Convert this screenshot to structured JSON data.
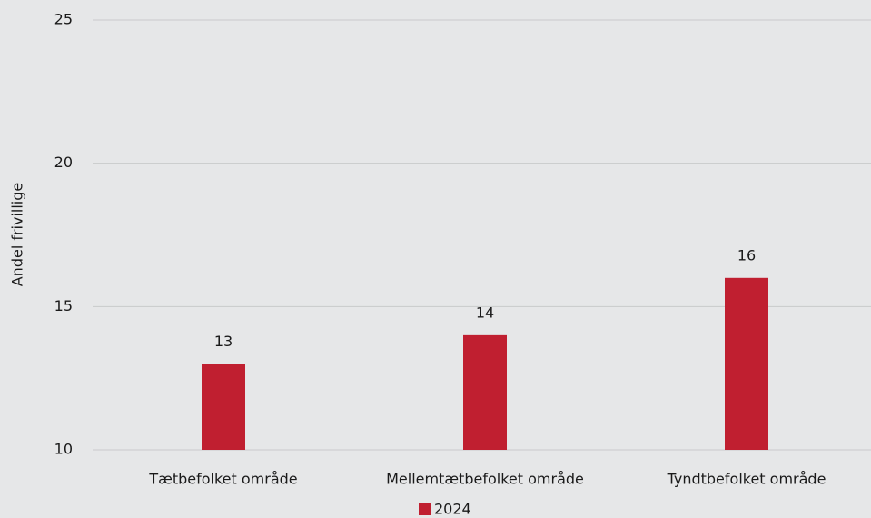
{
  "chart_data": {
    "type": "bar",
    "y_label": "Andel frivillige",
    "categories": [
      "Tætbefolket område",
      "Mellemtætbefolket område",
      "Tyndtbefolket område"
    ],
    "series": [
      {
        "name": "2024",
        "color": "#c01f30",
        "values": [
          13,
          14,
          16
        ]
      }
    ],
    "ylim": [
      10,
      25
    ],
    "yticks": [
      10,
      15,
      20,
      25
    ],
    "grid": true,
    "legend": "bottom"
  }
}
